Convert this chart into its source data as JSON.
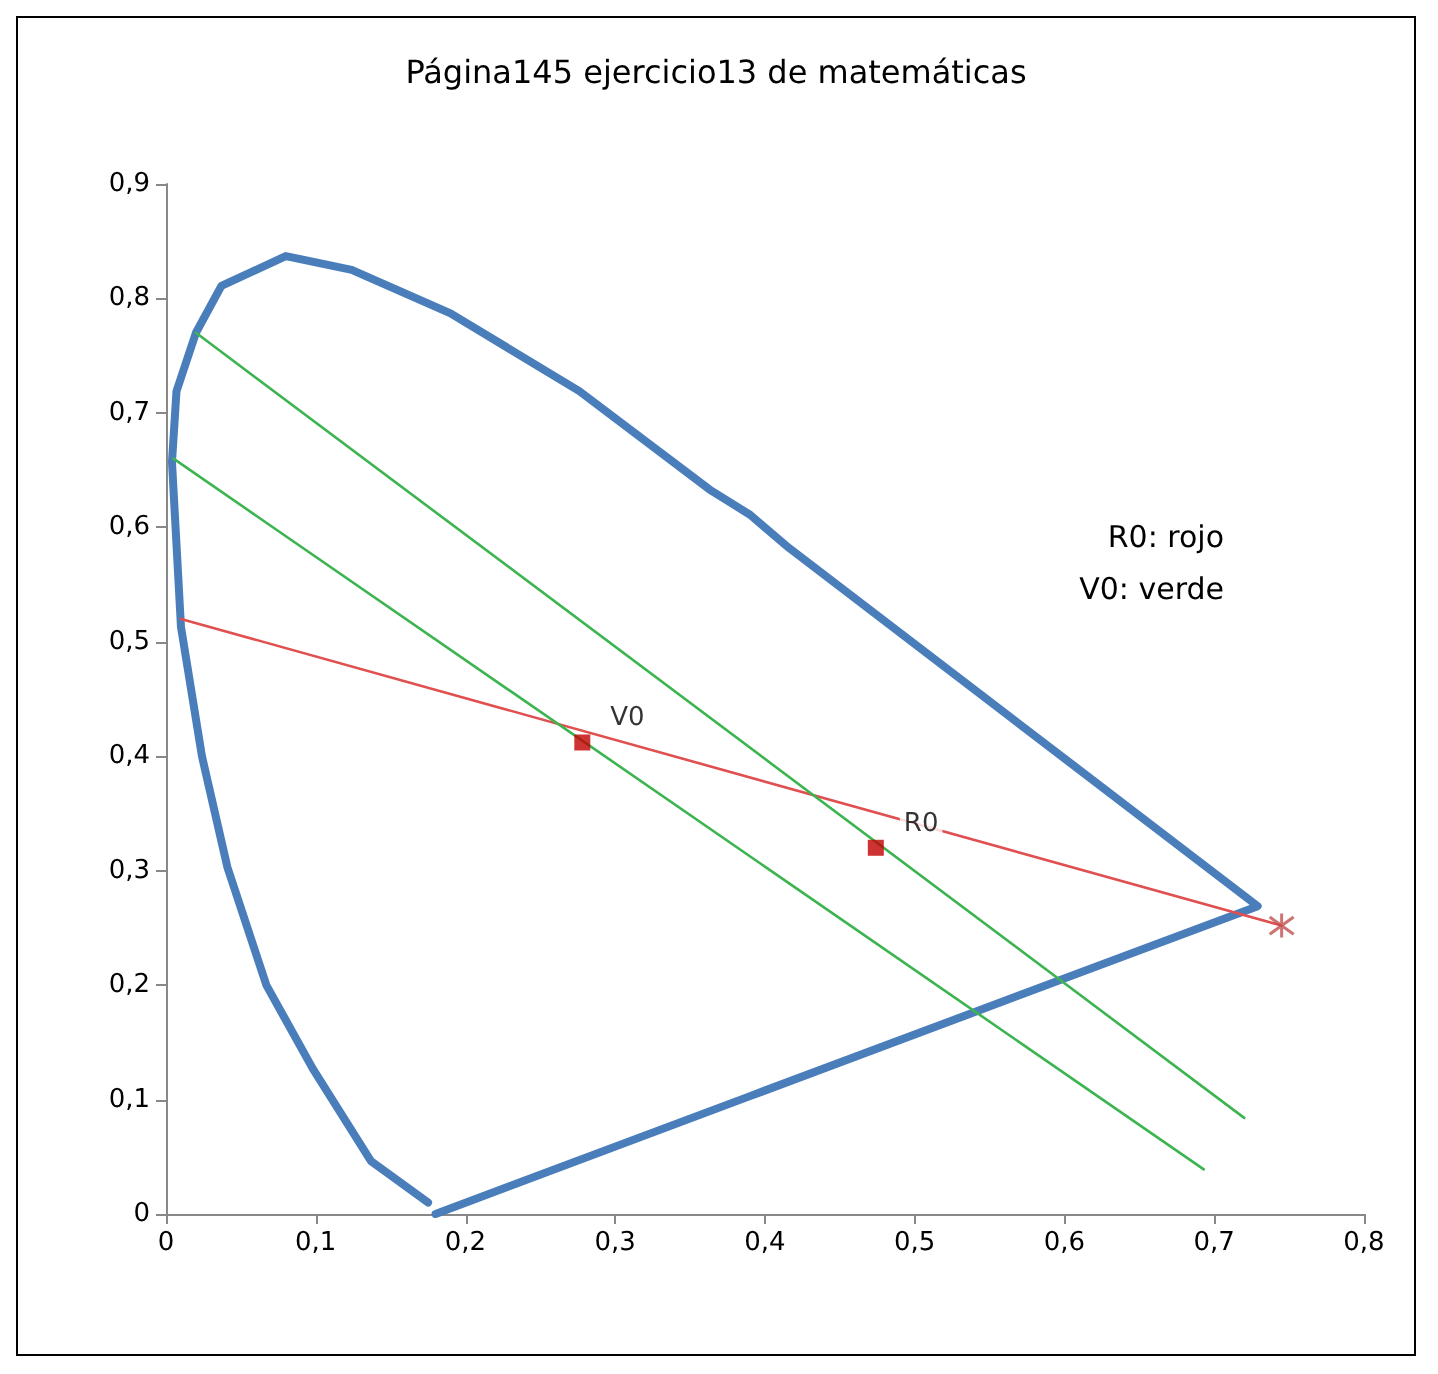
{
  "chart_data": {
    "type": "line",
    "title": "Página145 ejercicio13 de matemáticas",
    "xlim": [
      0,
      0.8
    ],
    "ylim": [
      0,
      0.9
    ],
    "xticks": [
      0,
      {
        "value": 0.1,
        "label": "0,1"
      },
      {
        "value": 0.2,
        "label": "0,2"
      },
      {
        "value": 0.3,
        "label": "0,3"
      },
      {
        "value": 0.4,
        "label": "0,4"
      },
      {
        "value": 0.5,
        "label": "0,5"
      },
      {
        "value": 0.6,
        "label": "0,6"
      },
      {
        "value": 0.7,
        "label": "0,7"
      },
      {
        "value": 0.8,
        "label": "0,8"
      }
    ],
    "yticks": [
      0,
      {
        "value": 0.1,
        "label": "0,1"
      },
      {
        "value": 0.2,
        "label": "0,2"
      },
      {
        "value": 0.3,
        "label": "0,3"
      },
      {
        "value": 0.4,
        "label": "0,4"
      },
      {
        "value": 0.5,
        "label": "0,5"
      },
      {
        "value": 0.6,
        "label": "0,6"
      },
      {
        "value": 0.7,
        "label": "0,7"
      },
      {
        "value": 0.8,
        "label": "0,8"
      },
      {
        "value": 0.9,
        "label": "0,9"
      }
    ],
    "grid": false,
    "annotations": [
      "R0: rojo",
      "V0: verde"
    ],
    "series": [
      {
        "color": "#4a7ebb",
        "marker": "none",
        "x": [
          0.175,
          0.137,
          0.098,
          0.067,
          0.041,
          0.024,
          0.01,
          0.004,
          0.007,
          0.02,
          0.037,
          0.08,
          0.124,
          0.19,
          0.276,
          0.363,
          0.39,
          0.416,
          0.563,
          0.729,
          0.39,
          0.18
        ],
        "values": [
          0.01,
          0.046,
          0.127,
          0.2,
          0.303,
          0.4,
          0.513,
          0.657,
          0.719,
          0.77,
          0.811,
          0.837,
          0.825,
          0.787,
          0.719,
          0.633,
          0.611,
          0.582,
          0.435,
          0.269,
          0.103,
          0.0
        ]
      },
      {
        "color": "#e05050",
        "marker": "none",
        "x": [
          0.01,
          0.745
        ],
        "values": [
          0.52,
          0.252
        ]
      },
      {
        "color": "#3cb450",
        "marker": "none",
        "x": [
          0.02,
          0.72
        ],
        "values": [
          0.77,
          0.084
        ]
      },
      {
        "color": "#3cb450",
        "marker": "none",
        "x": [
          0.005,
          0.693
        ],
        "values": [
          0.66,
          0.039
        ]
      },
      {
        "type": "scatter",
        "name": "V0",
        "color": "#c00000",
        "marker": "square",
        "x": [
          0.278
        ],
        "values": [
          0.412
        ]
      },
      {
        "type": "scatter",
        "name": "R0",
        "color": "#c00000",
        "marker": "square",
        "x": [
          0.474
        ],
        "values": [
          0.32
        ]
      },
      {
        "type": "scatter",
        "color": "#c0504d",
        "marker": "cross",
        "x": [
          0.745
        ],
        "values": [
          0.252
        ]
      }
    ]
  }
}
